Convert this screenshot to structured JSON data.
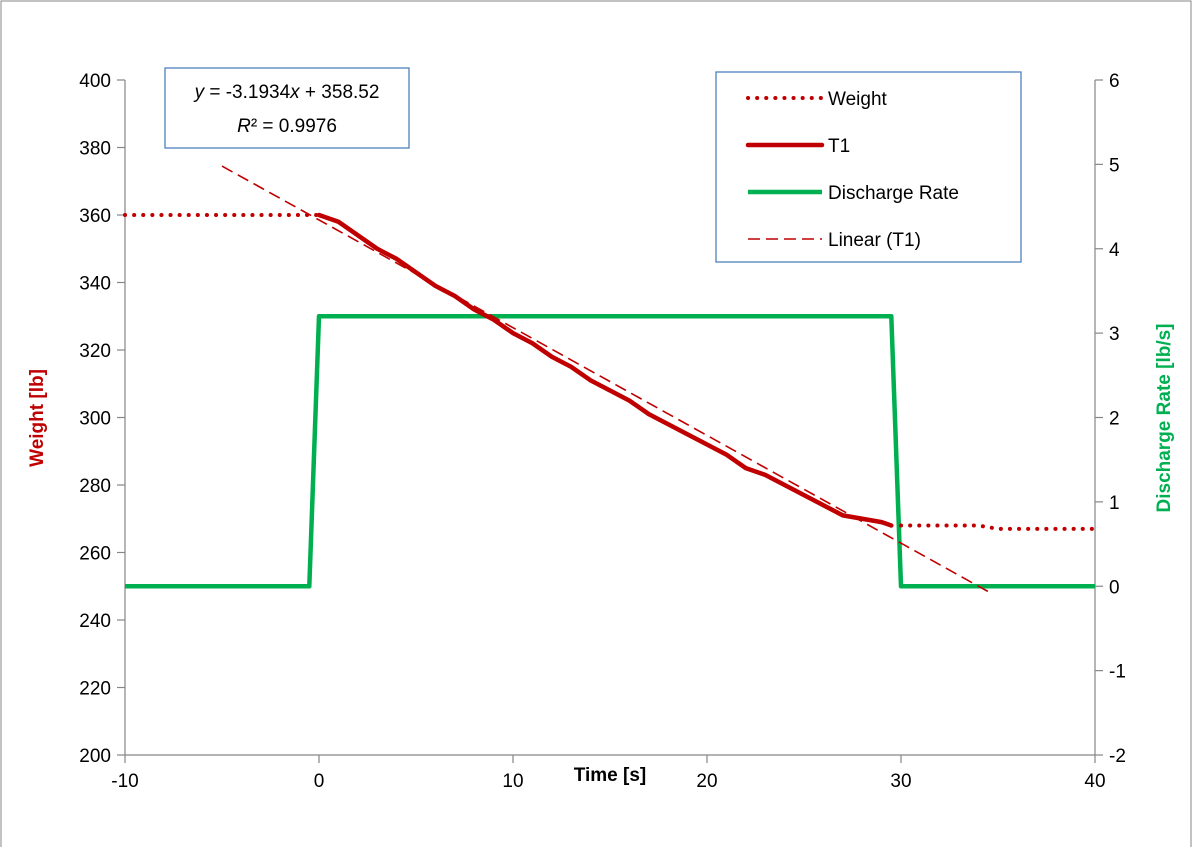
{
  "chart_data": {
    "type": "line",
    "xlabel": "Time [s]",
    "ylabel": "Weight [lb]",
    "y2label": "Discharge Rate [lb/s]",
    "xlim": [
      -10,
      40
    ],
    "ylim": [
      200,
      400
    ],
    "y2lim": [
      -2,
      6
    ],
    "xticks": [
      "-10",
      "0",
      "10",
      "20",
      "30",
      "40"
    ],
    "yticks": [
      "200",
      "220",
      "240",
      "260",
      "280",
      "300",
      "320",
      "340",
      "360",
      "380",
      "400"
    ],
    "y2ticks": [
      "-2",
      "-1",
      "0",
      "1",
      "2",
      "3",
      "4",
      "5",
      "6"
    ],
    "grid": false,
    "legend_position": "top-right",
    "trendline_equation": {
      "y_var": "y",
      "eq_rest": " = -3.1934",
      "x_var": "x",
      "eq_tail": " + 358.52",
      "r_var": "R",
      "r_rest": "² = 0.9976"
    },
    "series": [
      {
        "name": "Weight",
        "axis": "left",
        "style": "dotted",
        "color": "#C00000",
        "x": [
          -10,
          -8,
          -6,
          -4,
          -2,
          0,
          30,
          31,
          32,
          33,
          34,
          35,
          36,
          38,
          40
        ],
        "y": [
          360,
          360,
          360,
          360,
          360,
          360,
          268,
          268,
          268,
          268,
          268,
          267,
          267,
          267,
          267
        ]
      },
      {
        "name": "T1",
        "axis": "left",
        "style": "solid",
        "color": "#C00000",
        "x": [
          0,
          1,
          2,
          3,
          4,
          5,
          6,
          7,
          8,
          9,
          10,
          11,
          12,
          13,
          14,
          15,
          16,
          17,
          18,
          19,
          20,
          21,
          22,
          23,
          24,
          25,
          26,
          27,
          28,
          29,
          29.5
        ],
        "y": [
          360,
          358,
          354,
          350,
          347,
          343,
          339,
          336,
          332,
          329,
          325,
          322,
          318,
          315,
          311,
          308,
          305,
          301,
          298,
          295,
          292,
          289,
          285,
          283,
          280,
          277,
          274,
          271,
          270,
          269,
          268
        ]
      },
      {
        "name": "Discharge Rate",
        "axis": "right",
        "style": "solid",
        "color": "#00B050",
        "x": [
          -10,
          -0.5,
          0,
          29.5,
          30,
          40
        ],
        "y": [
          0,
          0,
          3.2,
          3.2,
          0,
          0
        ]
      },
      {
        "name": "Linear (T1)",
        "axis": "left",
        "style": "dashed",
        "color": "#C00000",
        "x": [
          -5,
          34.5
        ],
        "y": [
          374.5,
          248.4
        ]
      }
    ]
  }
}
